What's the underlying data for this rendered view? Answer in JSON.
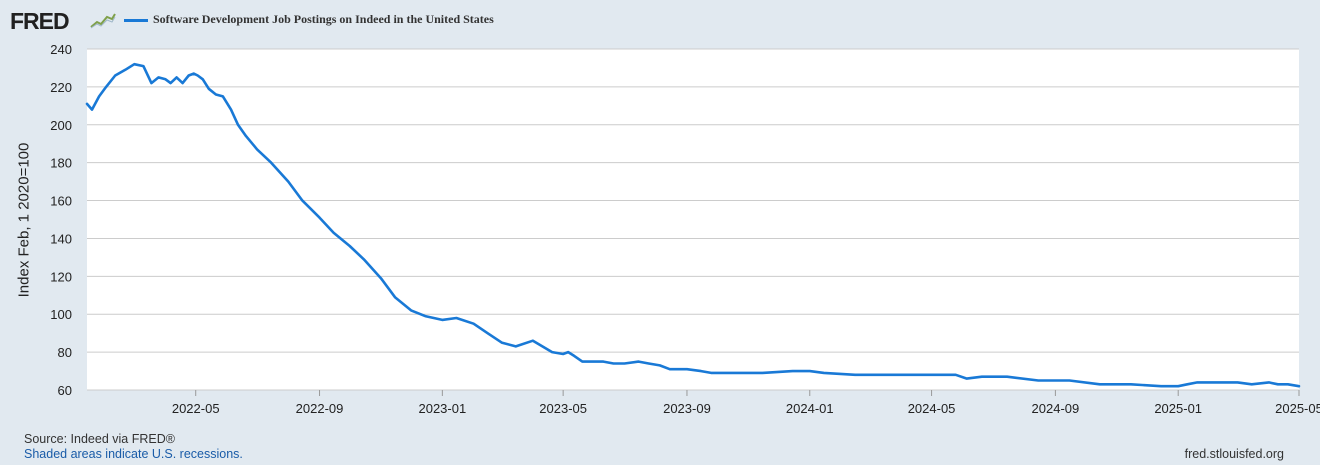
{
  "logo": {
    "text": "FRED"
  },
  "footer": {
    "source": "Source: Indeed via FRED®",
    "recession_note": "Shaded areas indicate U.S. recessions.",
    "site": "fred.stlouisfed.org"
  },
  "colors": {
    "background": "#e1e9f0",
    "plot_background": "#ffffff",
    "grid": "#cccccc",
    "line": "#1979d6",
    "link": "#1a5ca8"
  },
  "chart_data": {
    "type": "line",
    "title": "",
    "xlabel": "",
    "ylabel": "Index Feb, 1 2020=100",
    "ylim": [
      60,
      240
    ],
    "yticks": [
      60,
      80,
      100,
      120,
      140,
      160,
      180,
      200,
      220,
      240
    ],
    "xlim": [
      "2022-01-13",
      "2025-05-01"
    ],
    "xticks": [
      "2022-05",
      "2022-09",
      "2023-01",
      "2023-05",
      "2023-09",
      "2024-01",
      "2024-05",
      "2024-09",
      "2025-01",
      "2025-05"
    ],
    "grid": true,
    "legend": "top-left",
    "series": [
      {
        "name": "Software Development Job Postings on Indeed in the United States",
        "color": "#1979d6",
        "x": [
          "2022-01-13",
          "2022-01-18",
          "2022-01-25",
          "2022-02-01",
          "2022-02-10",
          "2022-02-20",
          "2022-03-01",
          "2022-03-10",
          "2022-03-18",
          "2022-03-25",
          "2022-04-01",
          "2022-04-06",
          "2022-04-12",
          "2022-04-18",
          "2022-04-24",
          "2022-04-29",
          "2022-05-03",
          "2022-05-08",
          "2022-05-14",
          "2022-05-21",
          "2022-05-28",
          "2022-06-05",
          "2022-06-12",
          "2022-06-20",
          "2022-07-01",
          "2022-07-15",
          "2022-08-01",
          "2022-08-15",
          "2022-09-01",
          "2022-09-15",
          "2022-10-01",
          "2022-10-15",
          "2022-11-01",
          "2022-11-15",
          "2022-12-01",
          "2022-12-15",
          "2023-01-01",
          "2023-01-15",
          "2023-02-01",
          "2023-02-15",
          "2023-03-01",
          "2023-03-15",
          "2023-04-01",
          "2023-04-20",
          "2023-05-01",
          "2023-05-06",
          "2023-05-12",
          "2023-05-20",
          "2023-06-01",
          "2023-06-10",
          "2023-06-20",
          "2023-07-01",
          "2023-07-15",
          "2023-07-25",
          "2023-08-05",
          "2023-08-15",
          "2023-09-01",
          "2023-09-15",
          "2023-09-25",
          "2023-10-15",
          "2023-11-15",
          "2023-12-15",
          "2024-01-01",
          "2024-01-15",
          "2024-02-15",
          "2024-03-15",
          "2024-04-15",
          "2024-05-15",
          "2024-05-25",
          "2024-06-05",
          "2024-06-20",
          "2024-07-15",
          "2024-08-15",
          "2024-09-15",
          "2024-10-15",
          "2024-11-15",
          "2024-12-15",
          "2025-01-01",
          "2025-01-10",
          "2025-01-20",
          "2025-02-15",
          "2025-03-01",
          "2025-03-15",
          "2025-04-01",
          "2025-04-10",
          "2025-04-20",
          "2025-05-01"
        ],
        "y": [
          211,
          208,
          215,
          220,
          226,
          229,
          232,
          231,
          222,
          225,
          224,
          222,
          225,
          222,
          226,
          227,
          226,
          224,
          219,
          216,
          215,
          208,
          200,
          194,
          187,
          180,
          170,
          160,
          151,
          143,
          136,
          129,
          119,
          109,
          102,
          99,
          97,
          98,
          95,
          90,
          85,
          83,
          86,
          80,
          79,
          80,
          78,
          75,
          75,
          75,
          74,
          74,
          75,
          74,
          73,
          71,
          71,
          70,
          69,
          69,
          69,
          70,
          70,
          69,
          68,
          68,
          68,
          68,
          68,
          66,
          67,
          67,
          65,
          65,
          63,
          63,
          62,
          62,
          63,
          64,
          64,
          64,
          63,
          64,
          63,
          63,
          62
        ]
      }
    ]
  }
}
